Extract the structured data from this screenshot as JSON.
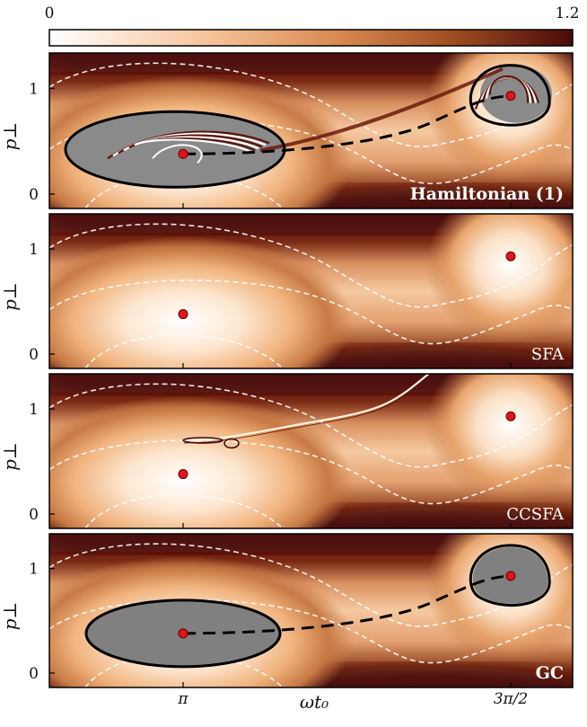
{
  "colorbar": {
    "min_label": "0",
    "max_label": "1.2",
    "colors": [
      "#ffffff",
      "#f6c49a",
      "#d98a52",
      "#9c4a20",
      "#4a0a08"
    ]
  },
  "chart_data": [
    {
      "type": "heatmap",
      "panel_label": "Hamiltonian (1)",
      "ylabel": "p⊥",
      "yticks": [
        "0",
        "1"
      ],
      "has_trajectory": true,
      "has_gray_regions": true,
      "chaotic": true
    },
    {
      "type": "heatmap",
      "panel_label": "SFA",
      "ylabel": "p⊥",
      "yticks": [
        "0",
        "1"
      ],
      "has_trajectory": false,
      "has_gray_regions": false
    },
    {
      "type": "heatmap",
      "panel_label": "CCSFA",
      "ylabel": "p⊥",
      "yticks": [
        "0",
        "1"
      ],
      "has_trajectory": false,
      "has_gray_regions": false,
      "has_streak": true
    },
    {
      "type": "heatmap",
      "panel_label": "GC",
      "ylabel": "p⊥",
      "yticks": [
        "0",
        "1"
      ],
      "has_trajectory": true,
      "has_gray_regions": true
    }
  ],
  "xaxis": {
    "label": "ωt₀",
    "ticks": [
      "π",
      "3π/2"
    ]
  },
  "points": [
    {
      "x": "π",
      "y": 0.38
    },
    {
      "x": "3π/2",
      "y": 0.93
    }
  ]
}
